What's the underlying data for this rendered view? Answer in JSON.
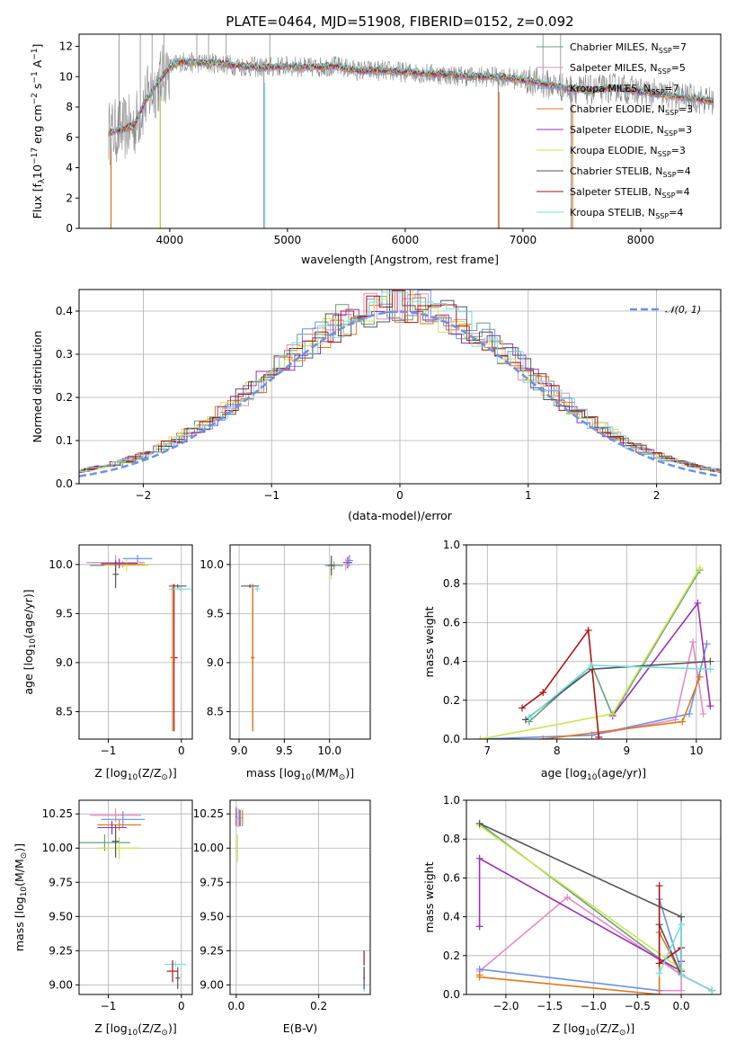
{
  "figure": {
    "title": "PLATE=0464, MJD=51908, FIBERID=0152, z=0.092"
  },
  "colors": {
    "Chabrier MILES": "#6b9e7e",
    "Salpeter MILES": "#e88bc3",
    "Kroupa MILES": "#6d91e6",
    "Chabrier ELODIE": "#e07a1f",
    "Salpeter ELODIE": "#9a32b6",
    "Kroupa ELODIE": "#c9e64d",
    "Chabrier STELIB": "#555555",
    "Salpeter STELIB": "#b01212",
    "Kroupa STELIB": "#74dfe0",
    "data": "#8a8a8a",
    "gaussian": "#6d91e6",
    "grid": "#b0b0b0"
  },
  "chart_data": [
    {
      "id": "spectrum",
      "type": "line",
      "title": "PLATE=0464, MJD=51908, FIBERID=0152, z=0.092",
      "xlabel": "wavelength [Angstrom, rest frame]",
      "ylabel_parts": [
        "Flux [f",
        "λ",
        "10",
        "−17",
        " erg cm",
        "−2",
        " s",
        "−1",
        " A",
        "−1",
        "]"
      ],
      "xlim": [
        3230,
        8680
      ],
      "ylim": [
        0,
        12.8
      ],
      "xticks": [
        4000,
        5000,
        6000,
        7000,
        8000
      ],
      "yticks": [
        0,
        2,
        4,
        6,
        8,
        10,
        12
      ],
      "grid": false,
      "legend_position": "top-right",
      "legend": [
        {
          "name": "Chabrier MILES",
          "nssp": "7"
        },
        {
          "name": "Salpeter MILES",
          "nssp": "5"
        },
        {
          "name": "Kroupa MILES",
          "nssp": "7"
        },
        {
          "name": "Chabrier ELODIE",
          "nssp": "3"
        },
        {
          "name": "Salpeter ELODIE",
          "nssp": "3"
        },
        {
          "name": "Kroupa ELODIE",
          "nssp": "3"
        },
        {
          "name": "Chabrier STELIB",
          "nssp": "4"
        },
        {
          "name": "Salpeter STELIB",
          "nssp": "4"
        },
        {
          "name": "Kroupa STELIB",
          "nssp": "4"
        }
      ],
      "data_trend": {
        "x": [
          3480,
          3600,
          3700,
          3800,
          3900,
          4000,
          4100,
          4200,
          4400,
          4600,
          4800,
          5000,
          5200,
          5400,
          5600,
          5800,
          6000,
          6200,
          6400,
          6600,
          6800,
          7000,
          7200,
          7400,
          7600,
          7800,
          8000,
          8200,
          8400,
          8600
        ],
        "y": [
          6.3,
          6.5,
          6.8,
          8.5,
          9.6,
          10.6,
          11.0,
          10.9,
          10.9,
          10.7,
          10.6,
          10.7,
          10.6,
          10.7,
          10.4,
          10.4,
          10.3,
          10.2,
          10.1,
          10.0,
          10.0,
          9.8,
          9.5,
          9.2,
          9.1,
          9.3,
          9.0,
          8.8,
          8.6,
          8.4
        ]
      },
      "data_dropouts": [
        {
          "x": 3500,
          "ylow": 0,
          "yhigh": 6.0
        },
        {
          "x": 3920,
          "ylow": 0,
          "yhigh": 9.5
        },
        {
          "x": 4800,
          "ylow": 0,
          "yhigh": 10.5
        },
        {
          "x": 6790,
          "ylow": 0,
          "yhigh": 9.8
        },
        {
          "x": 7410,
          "ylow": 0,
          "yhigh": 9.6
        }
      ],
      "data_spikes_x": [
        3570,
        3850,
        3750,
        4230,
        4330,
        3950,
        4850,
        4480,
        7320,
        7170
      ]
    },
    {
      "id": "residuals",
      "type": "line",
      "xlabel": "(data-model)/error",
      "ylabel": "Normed distribution",
      "xlim": [
        -2.5,
        2.5
      ],
      "ylim": [
        0,
        0.45
      ],
      "xticks": [
        -2,
        -1,
        0,
        1,
        2
      ],
      "yticks": [
        0.0,
        0.1,
        0.2,
        0.3,
        0.4
      ],
      "grid": true,
      "legend_position": "top-right",
      "legend": [
        {
          "name": "𝒩(0, 1)"
        }
      ],
      "gaussian": {
        "mean": 0,
        "sigma": 1
      }
    },
    {
      "id": "age-vs-Z",
      "type": "scatter",
      "xlabel_parts": [
        "Z [log",
        "10",
        "(Z/Z",
        "⊙",
        ")]"
      ],
      "ylabel_parts": [
        "age  [log",
        "10",
        "(age/yr)]"
      ],
      "xlim": [
        -1.4,
        0.15
      ],
      "ylim": [
        8.22,
        10.2
      ],
      "xticks": [
        -1,
        0
      ],
      "yticks": [
        8.5,
        9.0,
        9.5,
        10.0
      ],
      "grid": true,
      "points": [
        {
          "s": "Chabrier MILES",
          "x": -0.9,
          "y": 9.99,
          "xe": 0.35,
          "ye": 0.05
        },
        {
          "s": "Salpeter MILES",
          "x": -0.9,
          "y": 10.02,
          "xe": 0.4,
          "ye": 0.08
        },
        {
          "s": "Kroupa MILES",
          "x": -0.6,
          "y": 10.06,
          "xe": 0.2,
          "ye": 0.04
        },
        {
          "s": "Chabrier ELODIE",
          "x": -0.8,
          "y": 10.0,
          "xe": 0.3,
          "ye": 0.03
        },
        {
          "s": "Kroupa ELODIE",
          "x": -0.75,
          "y": 9.99,
          "xe": 0.3,
          "ye": 0.06
        },
        {
          "s": "Salpeter ELODIE",
          "x": -0.85,
          "y": 10.01,
          "xe": 0.25,
          "ye": 0.05
        },
        {
          "s": "Chabrier STELIB",
          "x": -0.9,
          "y": 9.9,
          "xe": 0.04,
          "ye": 0.14
        },
        {
          "s": "Chabrier STELIB",
          "x": -0.05,
          "y": 9.78,
          "xe": 0.12,
          "ye": 0.02
        },
        {
          "s": "Salpeter STELIB",
          "x": -0.1,
          "y": 9.05,
          "xe": 0.05,
          "ye": 0.75
        },
        {
          "s": "Kroupa STELIB",
          "x": -0.02,
          "y": 9.75,
          "xe": 0.15,
          "ye": 0.02
        },
        {
          "s": "Chabrier ELODIE",
          "x": -0.12,
          "y": 9.05,
          "xe": 0.02,
          "ye": 0.75
        }
      ]
    },
    {
      "id": "age-vs-mass",
      "type": "scatter",
      "xlabel_parts": [
        "mass [log",
        "10",
        "(M/M",
        "⊙",
        ")]"
      ],
      "xlim": [
        8.9,
        10.45
      ],
      "ylim": [
        8.22,
        10.2
      ],
      "xticks": [
        9.0,
        9.5,
        10.0
      ],
      "yticks": [
        8.5,
        9.0,
        9.5,
        10.0
      ],
      "grid": true,
      "points": [
        {
          "s": "Chabrier STELIB",
          "x": 9.12,
          "y": 9.78,
          "xe": 0.1,
          "ye": 0.02
        },
        {
          "s": "Salpeter STELIB",
          "x": 9.15,
          "y": 9.05,
          "xe": 0.02,
          "ye": 0.75
        },
        {
          "s": "Kroupa STELIB",
          "x": 9.2,
          "y": 9.75,
          "xe": 0.03,
          "ye": 0.03
        },
        {
          "s": "Chabrier ELODIE",
          "x": 9.15,
          "y": 9.05,
          "xe": 0.02,
          "ye": 0.75
        },
        {
          "s": "Chabrier MILES",
          "x": 10.05,
          "y": 9.99,
          "xe": 0.1,
          "ye": 0.04
        },
        {
          "s": "Kroupa ELODIE",
          "x": 10.02,
          "y": 9.95,
          "xe": 0.02,
          "ye": 0.1
        },
        {
          "s": "Salpeter ELODIE",
          "x": 10.2,
          "y": 10.02,
          "xe": 0.05,
          "ye": 0.06
        },
        {
          "s": "Kroupa MILES",
          "x": 10.22,
          "y": 10.04,
          "xe": 0.04,
          "ye": 0.06
        },
        {
          "s": "Salpeter MILES",
          "x": 10.18,
          "y": 10.0,
          "xe": 0.02,
          "ye": 0.06
        },
        {
          "s": "Chabrier STELIB",
          "x": 10.02,
          "y": 9.99,
          "xe": 0.04,
          "ye": 0.1
        }
      ]
    },
    {
      "id": "weight-vs-age",
      "type": "line",
      "xlabel_parts": [
        "age  [log",
        "10",
        "(age/yr)]"
      ],
      "ylabel": "mass weight",
      "xlim": [
        6.7,
        10.35
      ],
      "ylim": [
        0,
        1.0
      ],
      "xticks": [
        7,
        8,
        9,
        10
      ],
      "yticks": [
        0.0,
        0.2,
        0.4,
        0.6,
        0.8,
        1.0
      ],
      "grid": true,
      "series": [
        {
          "s": "Chabrier MILES",
          "x": [
            7.6,
            8.5,
            8.8,
            10.05
          ],
          "y": [
            0.09,
            0.38,
            0.12,
            0.87
          ]
        },
        {
          "s": "Salpeter MILES",
          "x": [
            8.5,
            9.7,
            9.95,
            10.1
          ],
          "y": [
            0.02,
            0.1,
            0.5,
            0.13
          ]
        },
        {
          "s": "Kroupa MILES",
          "x": [
            6.9,
            8.5,
            9.9,
            10.15
          ],
          "y": [
            0.0,
            0.02,
            0.13,
            0.49
          ]
        },
        {
          "s": "Chabrier ELODIE",
          "x": [
            7.8,
            9.8,
            10.05
          ],
          "y": [
            0.0,
            0.09,
            0.32
          ]
        },
        {
          "s": "Salpeter ELODIE",
          "x": [
            8.8,
            10.02,
            10.2
          ],
          "y": [
            0.12,
            0.7,
            0.17
          ]
        },
        {
          "s": "Kroupa ELODIE",
          "x": [
            6.9,
            8.8,
            10.05
          ],
          "y": [
            0.0,
            0.13,
            0.88
          ]
        },
        {
          "s": "Chabrier STELIB",
          "x": [
            7.55,
            8.5,
            10.2
          ],
          "y": [
            0.1,
            0.36,
            0.4
          ]
        },
        {
          "s": "Salpeter STELIB",
          "x": [
            7.5,
            7.8,
            8.45,
            8.6
          ],
          "y": [
            0.16,
            0.24,
            0.56,
            0.01
          ]
        },
        {
          "s": "Kroupa STELIB",
          "x": [
            7.6,
            8.5,
            10.2
          ],
          "y": [
            0.11,
            0.38,
            0.36
          ]
        }
      ]
    },
    {
      "id": "mass-vs-Z",
      "type": "scatter",
      "xlabel_parts": [
        "Z [log",
        "10",
        "(Z/Z",
        "⊙",
        ")]"
      ],
      "ylabel_parts": [
        "mass [log",
        "10",
        "(M/M",
        "⊙",
        ")]"
      ],
      "xlim": [
        -1.4,
        0.15
      ],
      "ylim": [
        8.93,
        10.35
      ],
      "xticks": [
        -1,
        0
      ],
      "yticks": [
        9.0,
        9.25,
        9.5,
        9.75,
        10.0,
        10.25
      ],
      "grid": true,
      "points": [
        {
          "s": "Salpeter MILES",
          "x": -0.9,
          "y": 10.24,
          "xe": 0.35,
          "ye": 0.05
        },
        {
          "s": "Kroupa MILES",
          "x": -0.8,
          "y": 10.21,
          "xe": 0.3,
          "ye": 0.06
        },
        {
          "s": "Chabrier ELODIE",
          "x": -0.85,
          "y": 10.17,
          "xe": 0.3,
          "ye": 0.04
        },
        {
          "s": "Chabrier MILES",
          "x": -1.05,
          "y": 10.04,
          "xe": 0.35,
          "ye": 0.06
        },
        {
          "s": "Kroupa ELODIE",
          "x": -0.85,
          "y": 10.0,
          "xe": 0.3,
          "ye": 0.08
        },
        {
          "s": "Salpeter ELODIE",
          "x": -0.95,
          "y": 10.15,
          "xe": 0.2,
          "ye": 0.05
        },
        {
          "s": "Chabrier STELIB",
          "x": -0.9,
          "y": 10.05,
          "xe": 0.05,
          "ye": 0.12
        },
        {
          "s": "Kroupa STELIB",
          "x": -0.08,
          "y": 9.15,
          "xe": 0.15,
          "ye": 0.02
        },
        {
          "s": "Salpeter STELIB",
          "x": -0.12,
          "y": 9.1,
          "xe": 0.08,
          "ye": 0.08
        },
        {
          "s": "Chabrier STELIB",
          "x": -0.05,
          "y": 9.05,
          "xe": 0.03,
          "ye": 0.08
        }
      ]
    },
    {
      "id": "mass-vs-ebv",
      "type": "scatter",
      "xlabel": "E(B-V)",
      "xlim": [
        -0.015,
        0.325
      ],
      "ylim": [
        8.93,
        10.35
      ],
      "xticks": [
        0.0,
        0.2
      ],
      "yticks": [
        9.0,
        9.25,
        9.5,
        9.75,
        10.0,
        10.25
      ],
      "grid": true,
      "points": [
        {
          "s": "Salpeter MILES",
          "x": 0.005,
          "y": 10.22,
          "xe": 0.002,
          "ye": 0.07
        },
        {
          "s": "Salpeter ELODIE",
          "x": 0.0,
          "y": 10.23,
          "xe": 0.002,
          "ye": 0.07
        },
        {
          "s": "Kroupa MILES",
          "x": 0.01,
          "y": 10.22,
          "xe": 0.002,
          "ye": 0.06
        },
        {
          "s": "Chabrier ELODIE",
          "x": 0.015,
          "y": 10.22,
          "xe": 0.002,
          "ye": 0.06
        },
        {
          "s": "Kroupa ELODIE",
          "x": 0.003,
          "y": 10.0,
          "xe": 0.002,
          "ye": 0.1
        },
        {
          "s": "Chabrier MILES",
          "x": 0.008,
          "y": 10.22,
          "xe": 0.002,
          "ye": 0.06
        },
        {
          "s": "Salpeter STELIB",
          "x": 0.31,
          "y": 9.15,
          "xe": 0.002,
          "ye": 0.1
        },
        {
          "s": "Kroupa STELIB",
          "x": 0.31,
          "y": 9.05,
          "xe": 0.002,
          "ye": 0.1
        },
        {
          "s": "Chabrier STELIB",
          "x": 0.31,
          "y": 9.05,
          "xe": 0.002,
          "ye": 0.08
        }
      ]
    },
    {
      "id": "weight-vs-Z",
      "type": "line",
      "xlabel_parts": [
        "Z [log",
        "10",
        "(Z/Z",
        "⊙",
        ")]"
      ],
      "ylabel": "mass weight",
      "xlim": [
        -2.45,
        0.45
      ],
      "ylim": [
        0,
        1.0
      ],
      "xticks": [
        -2.0,
        -1.5,
        -1.0,
        -0.5,
        0.0
      ],
      "yticks": [
        0.0,
        0.2,
        0.4,
        0.6,
        0.8,
        1.0
      ],
      "grid": true,
      "series": [
        {
          "s": "Chabrier MILES",
          "x": [
            -2.3,
            0.0,
            0.0
          ],
          "y": [
            0.88,
            0.1,
            0.17
          ]
        },
        {
          "s": "Salpeter MILES",
          "x": [
            -2.3,
            -1.3,
            0.0,
            0.0,
            -0.25
          ],
          "y": [
            0.12,
            0.5,
            0.1,
            0.02,
            0.02
          ]
        },
        {
          "s": "Kroupa MILES",
          "x": [
            -2.3,
            -0.25,
            -0.25,
            0.0
          ],
          "y": [
            0.13,
            0.02,
            0.49,
            0.12
          ]
        },
        {
          "s": "Chabrier ELODIE",
          "x": [
            -2.3,
            -2.3,
            -0.25,
            -0.25,
            0.0
          ],
          "y": [
            0.1,
            0.09,
            0.0,
            0.32,
            0.1
          ]
        },
        {
          "s": "Salpeter ELODIE",
          "x": [
            -2.3,
            -2.3,
            0.0,
            0.0
          ],
          "y": [
            0.35,
            0.7,
            0.12,
            0.17
          ]
        },
        {
          "s": "Kroupa ELODIE",
          "x": [
            -2.3,
            0.0,
            0.0
          ],
          "y": [
            0.87,
            0.13,
            0.13
          ]
        },
        {
          "s": "Chabrier STELIB",
          "x": [
            -2.3,
            0.0,
            0.0,
            -0.25
          ],
          "y": [
            0.88,
            0.4,
            0.1,
            0.36
          ]
        },
        {
          "s": "Salpeter STELIB",
          "x": [
            -0.25,
            -0.25,
            0.0,
            0.0,
            0.35
          ],
          "y": [
            0.56,
            0.16,
            0.24,
            0.1,
            0.02
          ]
        },
        {
          "s": "Kroupa STELIB",
          "x": [
            -0.25,
            0.0,
            0.0,
            0.35
          ],
          "y": [
            0.11,
            0.36,
            0.1,
            0.02
          ]
        }
      ]
    }
  ]
}
